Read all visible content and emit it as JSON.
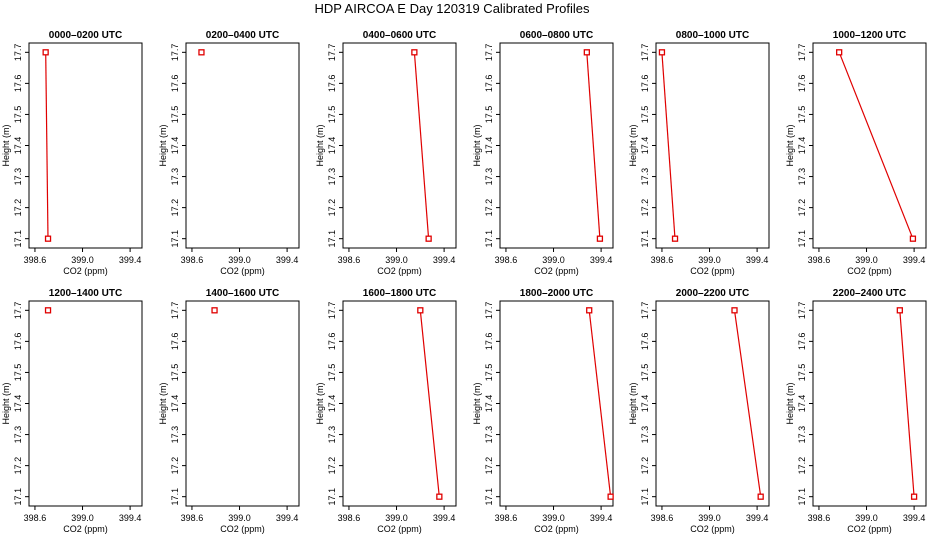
{
  "title": "HDP AIRCOA E  Day 120319  Calibrated Profiles",
  "chart_data": {
    "type": "line",
    "xlabel": "CO2 (ppm)",
    "ylabel": "Height (m)",
    "xlim": [
      398.55,
      399.5
    ],
    "ylim": [
      17.07,
      17.73
    ],
    "xticks": [
      "398.6",
      "399.0",
      "399.4"
    ],
    "xtick_values": [
      398.6,
      399.0,
      399.4
    ],
    "yticks": [
      "17.1",
      "17.2",
      "17.3",
      "17.4",
      "17.5",
      "17.6",
      "17.7"
    ],
    "ytick_values": [
      17.1,
      17.2,
      17.3,
      17.4,
      17.5,
      17.6,
      17.7
    ],
    "grid": false,
    "panels": [
      {
        "title": "0000–0200 UTC",
        "points": [
          {
            "x": 398.69,
            "y": 17.7
          },
          {
            "x": 398.71,
            "y": 17.1
          }
        ]
      },
      {
        "title": "0200–0400 UTC",
        "points": [
          {
            "x": 398.68,
            "y": 17.7
          }
        ]
      },
      {
        "title": "0400–0600 UTC",
        "points": [
          {
            "x": 399.15,
            "y": 17.7
          },
          {
            "x": 399.27,
            "y": 17.1
          }
        ]
      },
      {
        "title": "0600–0800 UTC",
        "points": [
          {
            "x": 399.28,
            "y": 17.7
          },
          {
            "x": 399.39,
            "y": 17.1
          }
        ]
      },
      {
        "title": "0800–1000 UTC",
        "points": [
          {
            "x": 398.6,
            "y": 17.7
          },
          {
            "x": 398.71,
            "y": 17.1
          }
        ]
      },
      {
        "title": "1000–1200 UTC",
        "points": [
          {
            "x": 398.77,
            "y": 17.7
          },
          {
            "x": 399.39,
            "y": 17.1
          }
        ]
      },
      {
        "title": "1200–1400 UTC",
        "points": [
          {
            "x": 398.71,
            "y": 17.7
          }
        ]
      },
      {
        "title": "1400–1600 UTC",
        "points": [
          {
            "x": 398.79,
            "y": 17.7
          }
        ]
      },
      {
        "title": "1600–1800 UTC",
        "points": [
          {
            "x": 399.2,
            "y": 17.7
          },
          {
            "x": 399.36,
            "y": 17.1
          }
        ]
      },
      {
        "title": "1800–2000 UTC",
        "points": [
          {
            "x": 399.3,
            "y": 17.7
          },
          {
            "x": 399.48,
            "y": 17.1
          }
        ]
      },
      {
        "title": "2000–2200 UTC",
        "points": [
          {
            "x": 399.21,
            "y": 17.7
          },
          {
            "x": 399.43,
            "y": 17.1
          }
        ]
      },
      {
        "title": "2200–2400 UTC",
        "points": [
          {
            "x": 399.28,
            "y": 17.7
          },
          {
            "x": 399.4,
            "y": 17.1
          }
        ]
      }
    ]
  }
}
